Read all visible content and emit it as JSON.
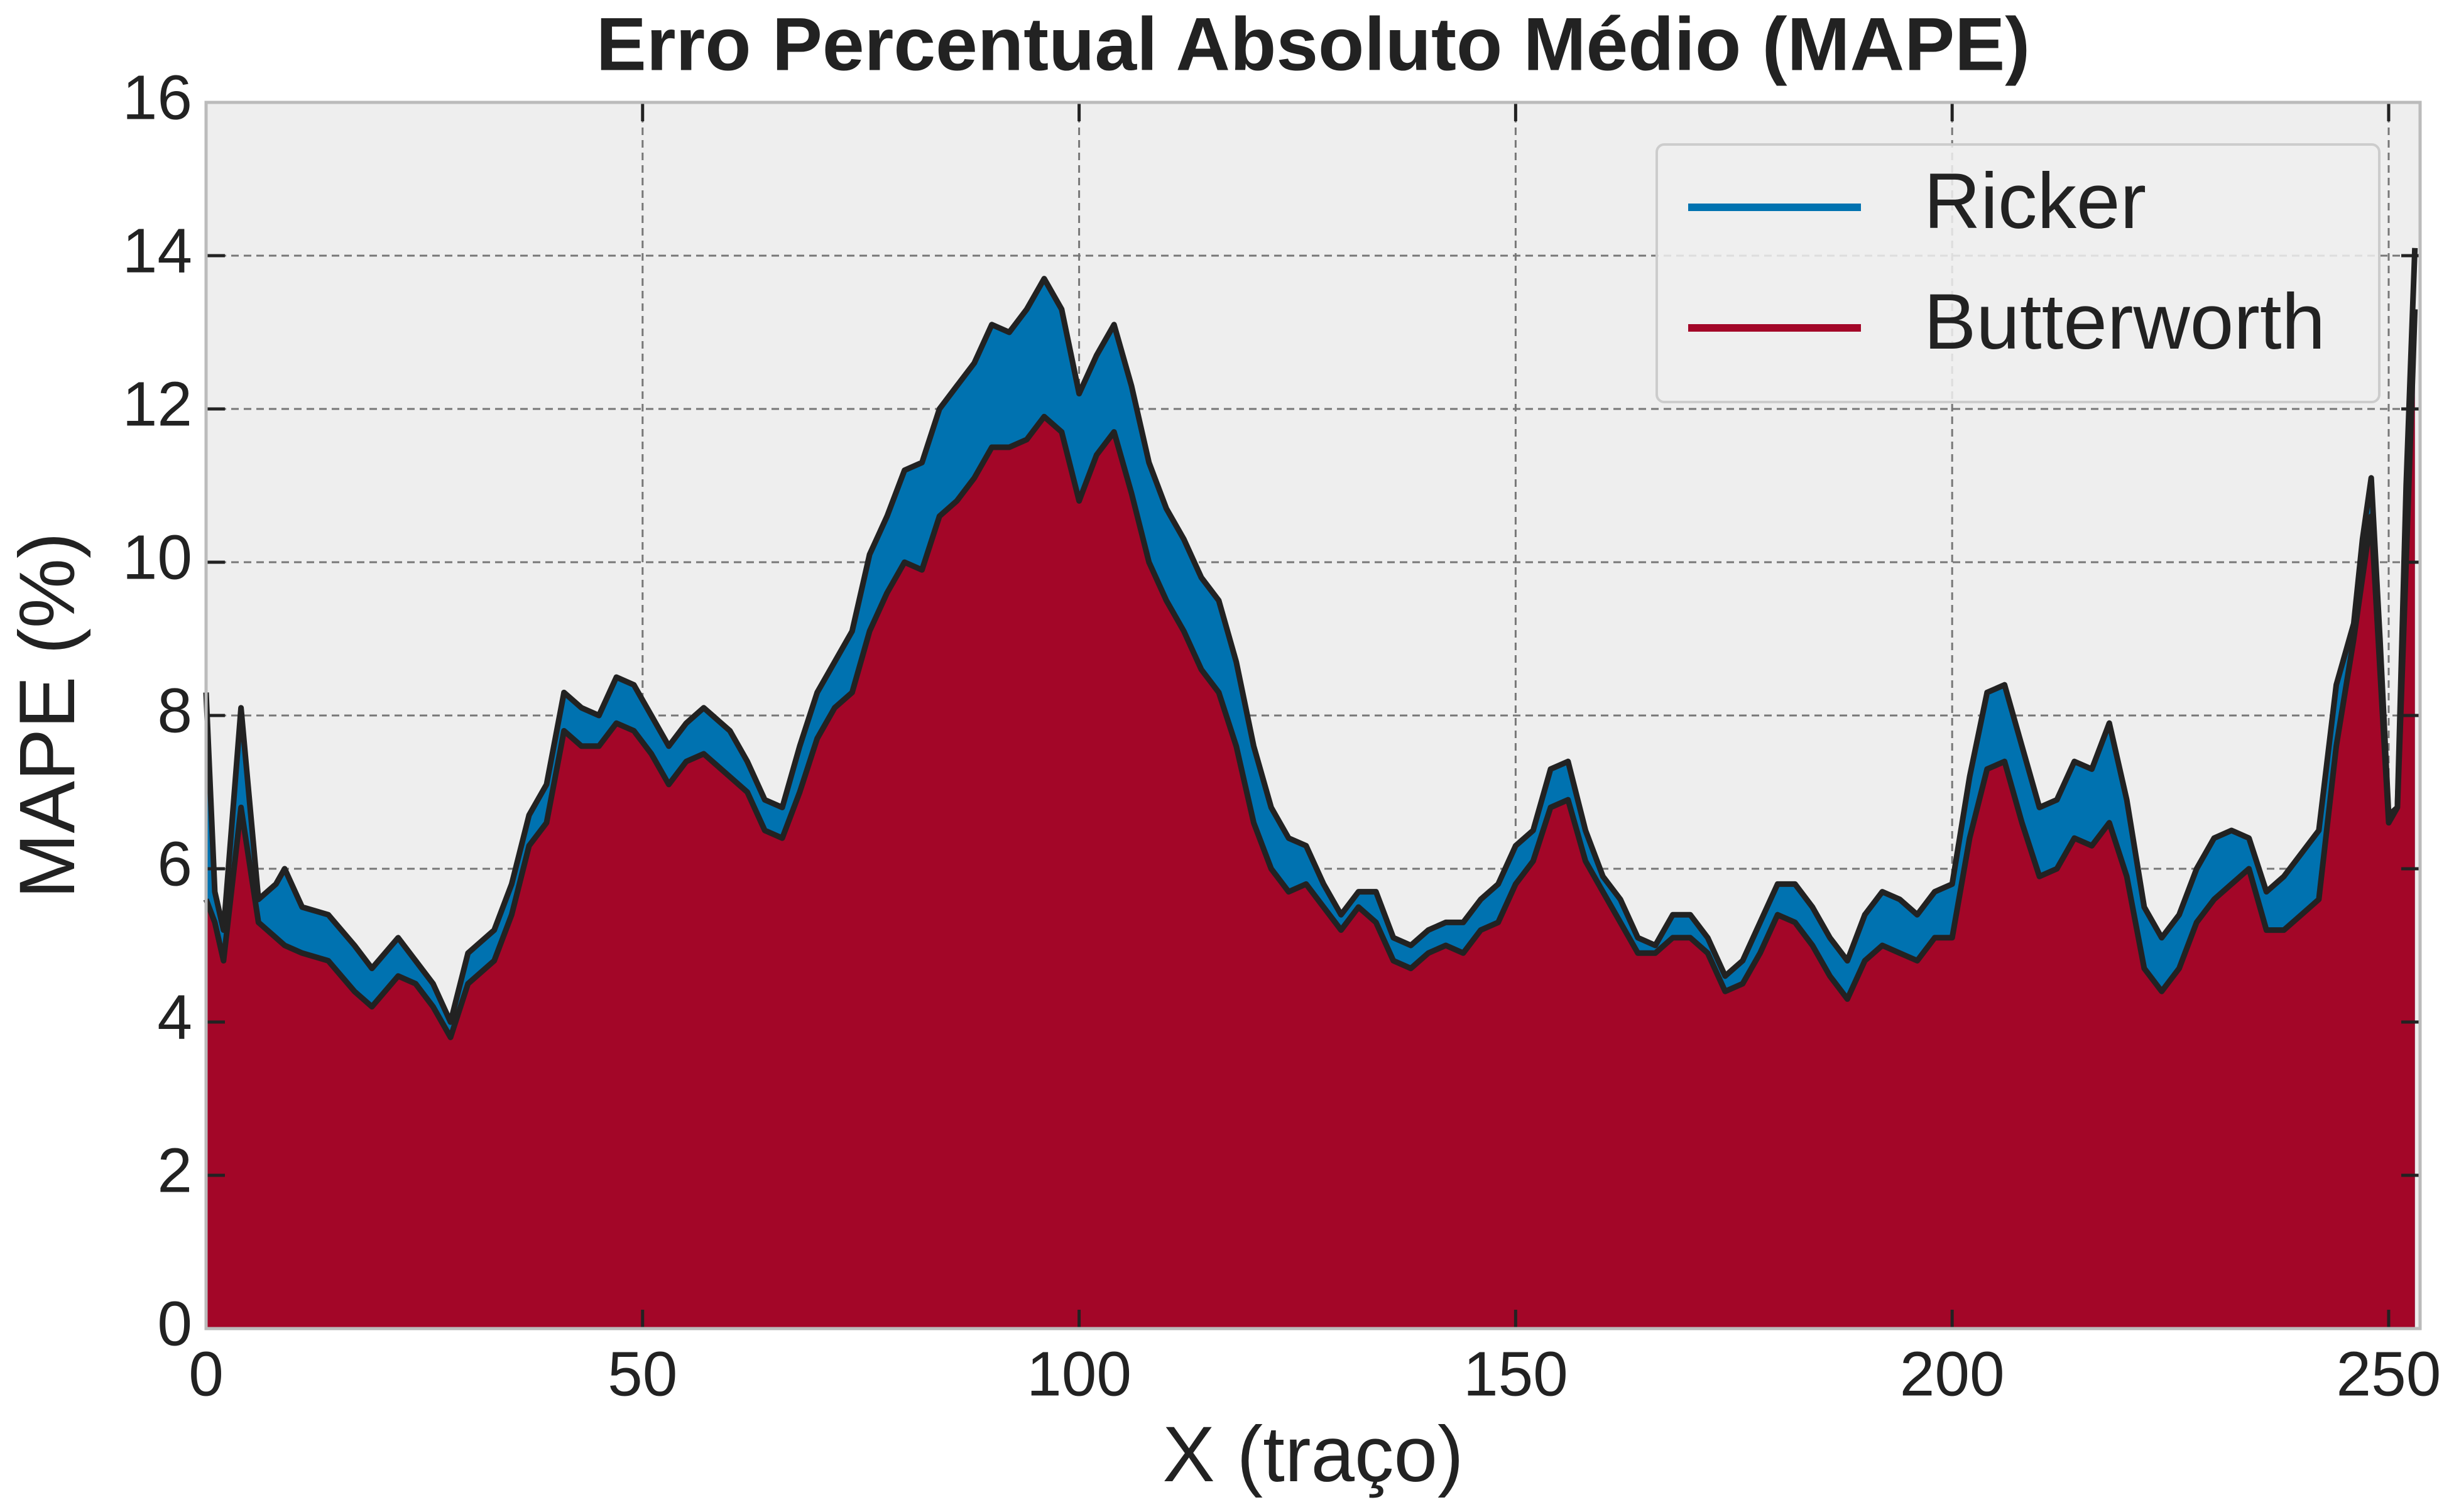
{
  "chart_data": {
    "type": "area",
    "title": "Erro Percentual Absoluto Médio (MAPE)",
    "x_label": "X (traço)",
    "y_label": "MAPE (%)",
    "x": [
      0,
      1,
      2,
      4,
      6,
      8,
      9,
      11,
      14,
      17,
      19,
      22,
      24,
      26,
      28,
      30,
      33,
      35,
      37,
      39,
      41,
      43,
      45,
      47,
      49,
      51,
      53,
      55,
      57,
      60,
      62,
      64,
      66,
      68,
      70,
      72,
      74,
      76,
      78,
      80,
      82,
      84,
      86,
      88,
      90,
      92,
      94,
      96,
      98,
      100,
      102,
      104,
      106,
      108,
      110,
      112,
      114,
      116,
      118,
      120,
      122,
      124,
      126,
      128,
      130,
      132,
      134,
      136,
      138,
      140,
      142,
      144,
      146,
      148,
      150,
      152,
      154,
      156,
      158,
      160,
      162,
      164,
      166,
      168,
      170,
      172,
      174,
      176,
      178,
      180,
      182,
      184,
      186,
      188,
      190,
      192,
      194,
      196,
      198,
      200,
      202,
      204,
      206,
      208,
      210,
      212,
      214,
      216,
      218,
      220,
      222,
      224,
      226,
      228,
      230,
      232,
      234,
      236,
      238,
      240,
      242,
      244,
      246,
      247,
      248,
      249,
      250,
      251,
      252,
      253
    ],
    "series": [
      {
        "name": "Ricker",
        "color": "#0072b0",
        "values": [
          8.3,
          5.7,
          5.2,
          8.1,
          5.6,
          5.8,
          6.0,
          5.5,
          5.4,
          5.0,
          4.7,
          5.1,
          4.8,
          4.5,
          4.0,
          4.9,
          5.2,
          5.8,
          6.7,
          7.1,
          8.3,
          8.1,
          8.0,
          8.5,
          8.4,
          8.0,
          7.6,
          7.9,
          8.1,
          7.8,
          7.4,
          6.9,
          6.8,
          7.6,
          8.3,
          8.7,
          9.1,
          10.1,
          10.6,
          11.2,
          11.3,
          12.0,
          12.3,
          12.6,
          13.1,
          13.0,
          13.3,
          13.7,
          13.3,
          12.2,
          12.7,
          13.1,
          12.3,
          11.3,
          10.7,
          10.3,
          9.8,
          9.5,
          8.7,
          7.6,
          6.8,
          6.4,
          6.3,
          5.8,
          5.4,
          5.7,
          5.7,
          5.1,
          5.0,
          5.2,
          5.3,
          5.3,
          5.6,
          5.8,
          6.3,
          6.5,
          7.3,
          7.4,
          6.5,
          5.9,
          5.6,
          5.1,
          5.0,
          5.4,
          5.4,
          5.1,
          4.6,
          4.8,
          5.3,
          5.8,
          5.8,
          5.5,
          5.1,
          4.8,
          5.4,
          5.7,
          5.6,
          5.4,
          5.7,
          5.8,
          7.2,
          8.3,
          8.4,
          7.6,
          6.8,
          6.9,
          7.4,
          7.3,
          7.9,
          6.9,
          5.5,
          5.1,
          5.4,
          6.0,
          6.4,
          6.5,
          6.4,
          5.7,
          5.9,
          6.2,
          6.5,
          8.4,
          9.2,
          10.3,
          11.1,
          9.0,
          6.7,
          6.8,
          11.0,
          14.1
        ]
      },
      {
        "name": "Butterworth",
        "color": "#a30628",
        "values": [
          5.6,
          5.3,
          4.8,
          6.8,
          5.3,
          5.1,
          5.0,
          4.9,
          4.8,
          4.4,
          4.2,
          4.6,
          4.5,
          4.2,
          3.8,
          4.5,
          4.8,
          5.4,
          6.3,
          6.6,
          7.8,
          7.6,
          7.6,
          7.9,
          7.8,
          7.5,
          7.1,
          7.4,
          7.5,
          7.2,
          7.0,
          6.5,
          6.4,
          7.0,
          7.7,
          8.1,
          8.3,
          9.1,
          9.6,
          10.0,
          9.9,
          10.6,
          10.8,
          11.1,
          11.5,
          11.5,
          11.6,
          11.9,
          11.7,
          10.8,
          11.4,
          11.7,
          10.9,
          10.0,
          9.5,
          9.1,
          8.6,
          8.3,
          7.6,
          6.6,
          6.0,
          5.7,
          5.8,
          5.5,
          5.2,
          5.5,
          5.3,
          4.8,
          4.7,
          4.9,
          5.0,
          4.9,
          5.2,
          5.3,
          5.8,
          6.1,
          6.8,
          6.9,
          6.1,
          5.7,
          5.3,
          4.9,
          4.9,
          5.1,
          5.1,
          4.9,
          4.4,
          4.5,
          4.9,
          5.4,
          5.3,
          5.0,
          4.6,
          4.3,
          4.8,
          5.0,
          4.9,
          4.8,
          5.1,
          5.1,
          6.4,
          7.3,
          7.4,
          6.6,
          5.9,
          6.0,
          6.4,
          6.3,
          6.6,
          5.9,
          4.7,
          4.4,
          4.7,
          5.3,
          5.6,
          5.8,
          6.0,
          5.2,
          5.2,
          5.4,
          5.6,
          7.6,
          9.0,
          9.8,
          10.6,
          8.6,
          6.6,
          6.8,
          10.0,
          13.3
        ]
      }
    ],
    "xlim": [
      0,
      253.6
    ],
    "ylim": [
      0,
      16
    ],
    "xticks": [
      0,
      50,
      100,
      150,
      200,
      250
    ],
    "yticks": [
      0,
      2,
      4,
      6,
      8,
      10,
      12,
      14,
      16
    ],
    "grid": true,
    "legend": "upper right"
  }
}
